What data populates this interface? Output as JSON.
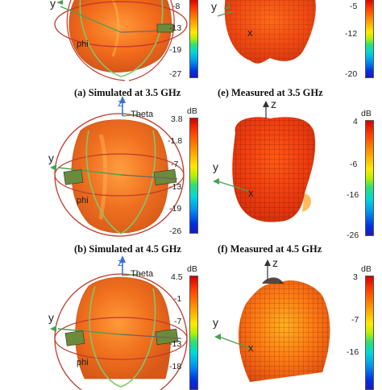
{
  "unit": "dB",
  "axis_labels": {
    "theta": "Theta",
    "phi": "phi",
    "y": "y",
    "z": "z",
    "x": "x"
  },
  "panels": {
    "a": {
      "caption": "(a) Simulated at 3.5 GHz",
      "ticks": [
        "-8",
        "-13",
        "-19",
        "-27"
      ]
    },
    "b": {
      "caption": "(b) Simulated at 4.5 GHz",
      "ticks": [
        "3.8",
        "-1.8",
        "-7",
        "-13",
        "-19",
        "-26"
      ]
    },
    "c": {
      "ticks": [
        "4.5",
        "-1",
        "-7",
        "-13",
        "-18"
      ]
    },
    "e": {
      "caption": "(e) Measured at 3.5 GHz",
      "ticks": [
        "-5",
        "-12",
        "-20"
      ]
    },
    "f": {
      "caption": "(f) Measured at 4.5 GHz",
      "ticks": [
        "4",
        "-6",
        "-16",
        "-26"
      ]
    },
    "g": {
      "ticks": [
        "3",
        "-7",
        "-16"
      ]
    }
  }
}
